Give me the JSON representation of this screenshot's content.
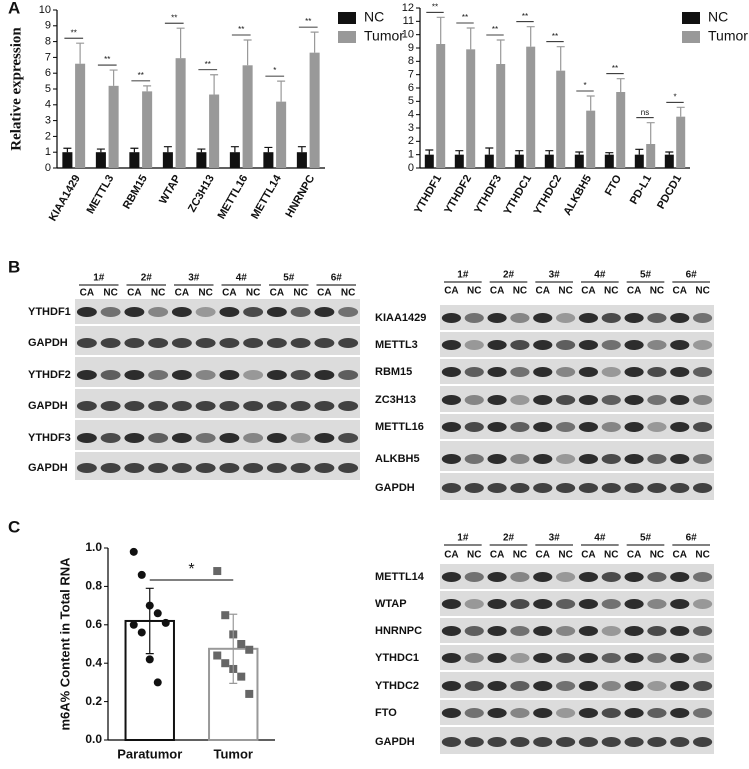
{
  "panel_labels": [
    "A",
    "B",
    "C"
  ],
  "chart_data": [
    {
      "type": "bar",
      "y_label": "Relative expression",
      "categories": [
        "KIAA1429",
        "METTL3",
        "RBM15",
        "WTAP",
        "ZC3H13",
        "METTL16",
        "METTL14",
        "HNRNPC"
      ],
      "series": [
        {
          "name": "NC",
          "color": "#111111",
          "values": [
            1,
            1,
            1,
            1,
            1,
            1,
            1,
            1
          ],
          "errors": [
            0.25,
            0.2,
            0.25,
            0.35,
            0.2,
            0.35,
            0.3,
            0.35
          ]
        },
        {
          "name": "Tumor",
          "color": "#999999",
          "values": [
            6.6,
            5.2,
            4.85,
            6.95,
            4.65,
            6.5,
            4.2,
            7.3
          ],
          "errors": [
            1.3,
            1.0,
            0.35,
            1.9,
            1.25,
            1.6,
            1.3,
            1.3
          ]
        }
      ],
      "significance": [
        "**",
        "**",
        "**",
        "**",
        "**",
        "**",
        "*",
        "**"
      ],
      "ylim": [
        0,
        10
      ],
      "yticks": [
        0,
        1,
        2,
        3,
        4,
        5,
        6,
        7,
        8,
        9,
        10
      ],
      "legend": "right"
    },
    {
      "type": "bar",
      "y_label": "",
      "categories": [
        "YTHDF1",
        "YTHDF2",
        "YTHDF3",
        "YTHDC1",
        "YTHDC2",
        "ALKBH5",
        "FTO",
        "PD-L1",
        "PDCD1"
      ],
      "series": [
        {
          "name": "NC",
          "color": "#111111",
          "values": [
            1,
            1,
            1,
            1,
            1,
            1,
            1,
            1,
            1
          ],
          "errors": [
            0.35,
            0.3,
            0.5,
            0.3,
            0.3,
            0.2,
            0.15,
            0.4,
            0.2
          ]
        },
        {
          "name": "Tumor",
          "color": "#999999",
          "values": [
            9.3,
            8.9,
            7.8,
            9.1,
            7.3,
            4.3,
            5.7,
            1.8,
            3.85
          ],
          "errors": [
            2.0,
            1.6,
            1.8,
            1.5,
            1.8,
            1.1,
            1.0,
            1.6,
            0.7
          ]
        }
      ],
      "significance": [
        "**",
        "**",
        "**",
        "**",
        "**",
        "*",
        "**",
        "ns",
        "*"
      ],
      "ylim": [
        0,
        12
      ],
      "yticks": [
        0,
        1,
        2,
        3,
        4,
        5,
        6,
        7,
        8,
        9,
        10,
        11,
        12
      ],
      "legend": "right"
    },
    {
      "type": "bar_scatter",
      "y_label": "m6A% Content in Total RNA",
      "categories": [
        "Paratumor",
        "Tumor"
      ],
      "values": [
        0.62,
        0.475
      ],
      "errors": [
        0.17,
        0.18
      ],
      "colors": [
        "#111111",
        "#999999"
      ],
      "markers": [
        "circle",
        "square"
      ],
      "points": [
        [
          0.98,
          0.86,
          0.7,
          0.66,
          0.61,
          0.6,
          0.56,
          0.42,
          0.3
        ],
        [
          0.88,
          0.65,
          0.55,
          0.5,
          0.47,
          0.44,
          0.4,
          0.37,
          0.33,
          0.24
        ]
      ],
      "significance": "*",
      "ylim": [
        0,
        1
      ],
      "yticks": [
        {
          "value": 0,
          "label": "0.0"
        },
        0.2,
        0.4,
        0.6,
        0.8,
        {
          "value": 1,
          "label": "1.0"
        }
      ]
    }
  ],
  "blots": [
    {
      "groups": [
        "1#",
        "2#",
        "3#",
        "4#",
        "5#",
        "6#"
      ],
      "lanes": [
        "CA",
        "NC"
      ],
      "rows": [
        "YTHDF1",
        "GAPDH",
        "YTHDF2",
        "GAPDH",
        "YTHDF3",
        "GAPDH"
      ]
    },
    {
      "groups": [
        "1#",
        "2#",
        "3#",
        "4#",
        "5#",
        "6#"
      ],
      "lanes": [
        "CA",
        "NC"
      ],
      "rows": [
        "KIAA1429",
        "METTL3",
        "RBM15",
        "ZC3H13",
        "METTL16",
        "ALKBH5",
        "GAPDH"
      ]
    },
    {
      "groups": [
        "1#",
        "2#",
        "3#",
        "4#",
        "5#",
        "6#"
      ],
      "lanes": [
        "CA",
        "NC"
      ],
      "rows": [
        "METTL14",
        "WTAP",
        "HNRNPC",
        "YTHDC1",
        "YTHDC2",
        "FTO",
        "GAPDH"
      ]
    }
  ]
}
